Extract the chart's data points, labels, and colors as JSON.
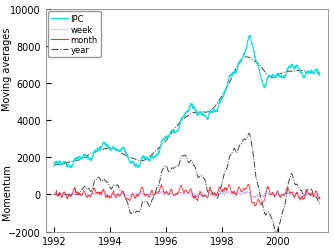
{
  "ylabel_top": "Moving averages",
  "ylabel_bottom": "Momentum",
  "ylim": [
    -2000,
    10000
  ],
  "xlim_start": 1991.7,
  "xlim_end": 2001.8,
  "yticks": [
    -2000,
    0,
    2000,
    4000,
    6000,
    8000,
    10000
  ],
  "xticks": [
    1992,
    1994,
    1996,
    1998,
    2000
  ],
  "legend_labels": [
    "IPC",
    "week",
    "month",
    "year"
  ],
  "ipc_color": "#00E5E5",
  "week_color": "#8888FF",
  "month_color": "#FF3333",
  "year_color": "#444444",
  "background_color": "#FFFFFF",
  "seed": 12345,
  "n_points": 2500
}
